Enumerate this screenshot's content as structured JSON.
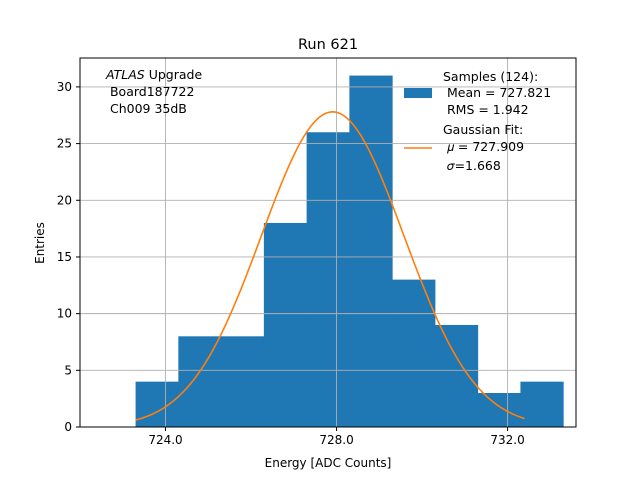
{
  "chart_data": {
    "type": "bar",
    "title": "Run 621",
    "xlabel": "Energy [ADC Counts]",
    "ylabel": "Entries",
    "xlim": [
      722.0,
      733.6
    ],
    "ylim": [
      0,
      32.55
    ],
    "grid": true,
    "xticks": [
      {
        "value": 724.0,
        "label": "724.0"
      },
      {
        "value": 728.0,
        "label": "728.0"
      },
      {
        "value": 732.0,
        "label": "732.0"
      }
    ],
    "yticks": [
      0,
      5,
      10,
      15,
      20,
      25,
      30
    ],
    "bins": [
      {
        "x0": 723.3,
        "x1": 724.3,
        "count": 4
      },
      {
        "x0": 724.3,
        "x1": 725.3,
        "count": 8
      },
      {
        "x0": 725.3,
        "x1": 726.3,
        "count": 8
      },
      {
        "x0": 726.3,
        "x1": 727.3,
        "count": 18
      },
      {
        "x0": 727.3,
        "x1": 728.3,
        "count": 26
      },
      {
        "x0": 728.3,
        "x1": 729.3,
        "count": 31
      },
      {
        "x0": 729.3,
        "x1": 730.3,
        "count": 13
      },
      {
        "x0": 730.3,
        "x1": 731.3,
        "count": 9
      },
      {
        "x0": 731.3,
        "x1": 732.3,
        "count": 3
      },
      {
        "x0": 732.3,
        "x1": 733.3,
        "count": 4
      }
    ],
    "fit": {
      "type": "gaussian",
      "mu": 727.909,
      "sigma": 1.668,
      "amplitude": 27.8,
      "x_from": 723.3,
      "x_to": 732.4
    },
    "colors": {
      "hist": "#1f77b4",
      "fit": "#ff7f0e",
      "grid": "#b0b0b0"
    },
    "legend": {
      "position": "top-right",
      "hist_label": "Samples (124):",
      "hist_mean": " Mean = 727.821",
      "hist_rms": " RMS = 1.942",
      "fit_label": "Gaussian Fit:",
      "fit_mu": "𝜇 = 727.909",
      "fit_sigma": "𝜎=1.668"
    },
    "annotation": {
      "line1_italic": "ATLAS",
      "line1_rest": " Upgrade",
      "line2": " Board187722",
      "line3": " Ch009 35dB"
    }
  }
}
